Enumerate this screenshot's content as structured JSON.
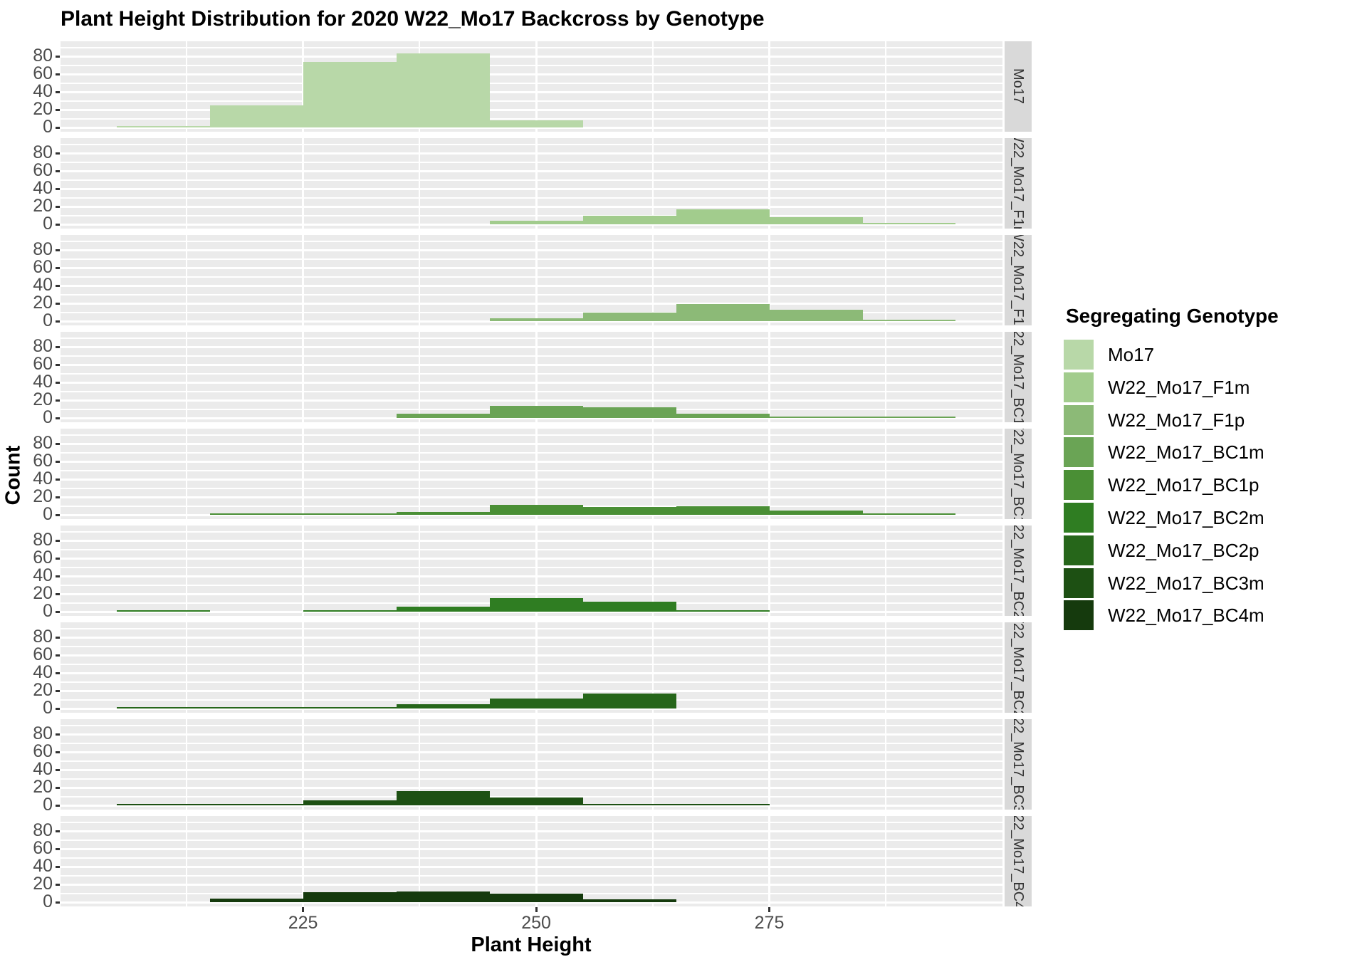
{
  "title": "Plant Height Distribution for 2020 W22_Mo17 Backcross by Genotype",
  "legend": {
    "title": "Segregating Genotype"
  },
  "colors": {
    "panel_bg": "#ebebeb",
    "gridline": "#ffffff",
    "strip_bg": "#d9d9d9",
    "axis_text": "#4d4d4d",
    "strip_text": "#333333",
    "tick_mark": "#333333",
    "title_text": "#000000"
  },
  "chart_data": {
    "type": "histogram",
    "title": "Plant Height Distribution for 2020 W22_Mo17 Backcross by Genotype",
    "xlabel": "Plant Height",
    "ylabel": "Count",
    "legend_title": "Segregating Genotype",
    "legend_position": "right",
    "grid": "on",
    "facet_layout": "rows",
    "bin_width": 10,
    "x_range": [
      199,
      300
    ],
    "y_range": [
      0,
      96
    ],
    "x_ticks": [
      225,
      250,
      275
    ],
    "y_ticks": [
      0,
      20,
      40,
      60,
      80
    ],
    "x_minor_gridlines": [
      212.5,
      237.5,
      262.5,
      287.5
    ],
    "y_minor_gridlines": [
      10,
      30,
      50,
      70,
      90
    ],
    "facets": [
      {
        "label": "Mo17",
        "color": "#b8d8a8",
        "bins": [
          [
            205,
            1
          ],
          [
            215,
            25
          ],
          [
            225,
            74
          ],
          [
            235,
            83
          ],
          [
            245,
            8
          ]
        ]
      },
      {
        "label": "W22_Mo17_F1m",
        "color": "#a2cc8d",
        "bins": [
          [
            245,
            4
          ],
          [
            255,
            10
          ],
          [
            265,
            17
          ],
          [
            275,
            8
          ],
          [
            285,
            1
          ]
        ]
      },
      {
        "label": "W22_Mo17_F1p",
        "color": "#8cba77",
        "bins": [
          [
            245,
            3
          ],
          [
            255,
            10
          ],
          [
            265,
            19
          ],
          [
            275,
            13
          ],
          [
            285,
            2
          ]
        ]
      },
      {
        "label": "W22_Mo17_BC1m",
        "color": "#6aa455",
        "bins": [
          [
            235,
            5
          ],
          [
            245,
            14
          ],
          [
            255,
            12
          ],
          [
            265,
            5
          ],
          [
            275,
            2
          ],
          [
            285,
            1
          ]
        ]
      },
      {
        "label": "W22_Mo17_BC1p",
        "color": "#4a8f35",
        "bins": [
          [
            215,
            1
          ],
          [
            225,
            1
          ],
          [
            235,
            3
          ],
          [
            245,
            11
          ],
          [
            255,
            9
          ],
          [
            265,
            10
          ],
          [
            275,
            5
          ],
          [
            285,
            1
          ]
        ]
      },
      {
        "label": "W22_Mo17_BC2m",
        "color": "#2f7d22",
        "bins": [
          [
            205,
            1
          ],
          [
            225,
            2
          ],
          [
            235,
            6
          ],
          [
            245,
            15
          ],
          [
            255,
            11
          ],
          [
            265,
            2
          ]
        ]
      },
      {
        "label": "W22_Mo17_BC2p",
        "color": "#26661a",
        "bins": [
          [
            205,
            1
          ],
          [
            215,
            1
          ],
          [
            225,
            2
          ],
          [
            235,
            5
          ],
          [
            245,
            11
          ],
          [
            255,
            17
          ]
        ]
      },
      {
        "label": "W22_Mo17_BC3m",
        "color": "#1d5013",
        "bins": [
          [
            205,
            1
          ],
          [
            215,
            2
          ],
          [
            225,
            6
          ],
          [
            235,
            16
          ],
          [
            245,
            9
          ],
          [
            255,
            1
          ],
          [
            265,
            1
          ]
        ]
      },
      {
        "label": "W22_Mo17_BC4m",
        "color": "#153a0d",
        "bins": [
          [
            215,
            4
          ],
          [
            225,
            11
          ],
          [
            235,
            12
          ],
          [
            245,
            10
          ],
          [
            255,
            3
          ]
        ]
      }
    ]
  }
}
